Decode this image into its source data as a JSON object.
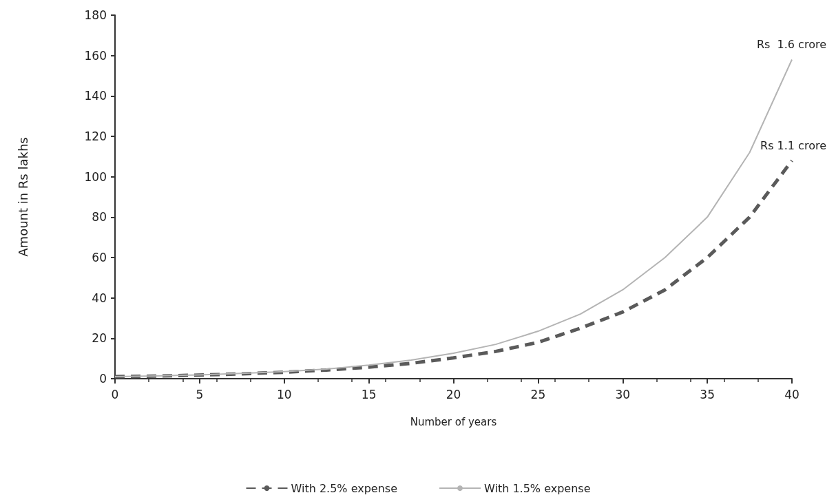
{
  "chart_data": {
    "type": "line",
    "xlabel": "Number of years",
    "ylabel": "Amount in Rs lakhs",
    "x": [
      0,
      2.5,
      5,
      7.5,
      10,
      12.5,
      15,
      17.5,
      20,
      22.5,
      25,
      27.5,
      30,
      32.5,
      35,
      37.5,
      40
    ],
    "series": [
      {
        "name": "With 2.5% expense",
        "color": "#5a5a5a",
        "line_style": "dashed",
        "values": [
          1,
          1.3,
          1.8,
          2.4,
          3.2,
          4.3,
          5.7,
          7.6,
          10.3,
          13.5,
          18,
          25,
          33,
          44,
          60,
          80,
          108
        ]
      },
      {
        "name": "With 1.5% expense",
        "color": "#b4b4b4",
        "line_style": "solid",
        "values": [
          1,
          1.4,
          1.9,
          2.6,
          3.5,
          4.8,
          6.7,
          9.2,
          12.6,
          17,
          23.5,
          32,
          44,
          60,
          80,
          112,
          158
        ]
      }
    ],
    "xlim": [
      0,
      40
    ],
    "xticks": [
      0,
      5,
      10,
      15,
      20,
      25,
      30,
      35,
      40
    ],
    "ylim": [
      0,
      180
    ],
    "yticks": [
      0,
      20,
      40,
      60,
      80,
      100,
      120,
      140,
      160,
      180
    ],
    "annotations": [
      {
        "text": "Rs  1.6 crore",
        "x": 40,
        "y": 158
      },
      {
        "text": "Rs 1.1 crore",
        "x": 40,
        "y": 108
      }
    ],
    "grid": false,
    "legend": "bottom",
    "marker": "none"
  }
}
